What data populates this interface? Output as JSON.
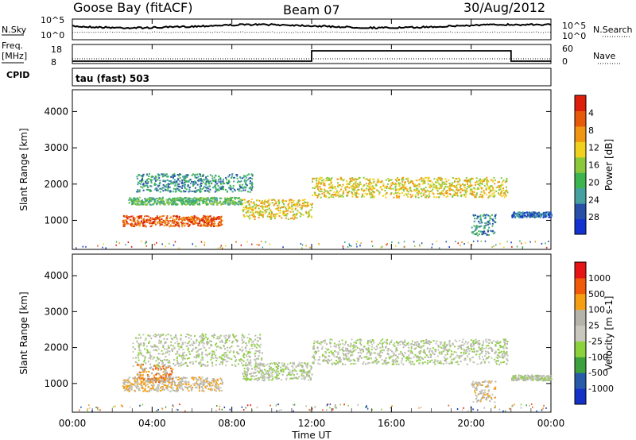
{
  "header": {
    "station": "Goose Bay (fitACF)",
    "beam": "Beam 07",
    "date": "30/Aug/2012"
  },
  "noise_panel": {
    "left_label": "N.Sky",
    "left_ticks": [
      "10^5",
      "10^0"
    ],
    "right_ticks": [
      "10^5",
      "10^0"
    ],
    "right_label": "N.Search"
  },
  "freq_panel": {
    "left_label_top": "Freq.",
    "left_label_unit": "[MHz]",
    "left_ticks": [
      "18",
      "8"
    ],
    "right_ticks": [
      "60",
      "0"
    ],
    "right_label": "Nave"
  },
  "cpid_panel": {
    "left_label": "CPID",
    "mode_text": "tau (fast) 503"
  },
  "time_axis": {
    "title": "Time UT",
    "ticks": [
      "00:00",
      "04:00",
      "08:00",
      "12:00",
      "16:00",
      "20:00",
      "00:00"
    ],
    "range_hours": [
      0,
      24
    ]
  },
  "colors": {
    "power": [
      "#1432d2",
      "#2850a8",
      "#46a0a0",
      "#3cb450",
      "#8cc83c",
      "#f0d21e",
      "#f09614",
      "#e65a0a",
      "#dc1e0a"
    ],
    "velocity": [
      "#e61414",
      "#f05a0a",
      "#f5a014",
      "#b4b4aa",
      "#c8c8be",
      "#8cd23c",
      "#3ca03c",
      "#285aaa",
      "#1432c8"
    ]
  },
  "chart_data": [
    {
      "type": "heatmap",
      "name": "power",
      "ylabel": "Slant Range [km]",
      "ylim": [
        200,
        4600
      ],
      "yticks": [
        "1000",
        "2000",
        "3000",
        "4000"
      ],
      "colorbar_label": "Power [dB]",
      "colorbar_ticks": [
        "4",
        "8",
        "12",
        "16",
        "20",
        "24",
        "28"
      ],
      "bands": [
        {
          "t0": 2.5,
          "t1": 7.5,
          "r0": 850,
          "r1": 1150,
          "level": 7
        },
        {
          "t0": 2.8,
          "t1": 8.5,
          "r0": 1450,
          "r1": 1650,
          "level": 3
        },
        {
          "t0": 3.2,
          "t1": 9.0,
          "r0": 1800,
          "r1": 2300,
          "level": 2
        },
        {
          "t0": 8.5,
          "t1": 12.0,
          "r0": 1050,
          "r1": 1600,
          "level": 5
        },
        {
          "t0": 12.0,
          "t1": 21.8,
          "r0": 1650,
          "r1": 2200,
          "level": 5
        },
        {
          "t0": 20.0,
          "t1": 21.2,
          "r0": 600,
          "r1": 1200,
          "level": 2
        },
        {
          "t0": 22.0,
          "t1": 24.0,
          "r0": 1100,
          "r1": 1250,
          "level": 1
        }
      ]
    },
    {
      "type": "heatmap",
      "name": "velocity",
      "ylabel": "Slant Range [km]",
      "ylim": [
        200,
        4600
      ],
      "yticks": [
        "1000",
        "2000",
        "3000",
        "4000"
      ],
      "colorbar_label": "Velocity [m s-1]",
      "colorbar_ticks": [
        "1000",
        "500",
        "100",
        "25",
        "-25",
        "-100",
        "-500",
        "-1000"
      ],
      "bands": [
        {
          "t0": 2.5,
          "t1": 7.5,
          "r0": 800,
          "r1": 1200,
          "level": 3
        },
        {
          "t0": 3.2,
          "t1": 5.0,
          "r0": 1050,
          "r1": 1550,
          "level": 2
        },
        {
          "t0": 3.0,
          "t1": 9.5,
          "r0": 1500,
          "r1": 2400,
          "level": 4
        },
        {
          "t0": 8.5,
          "t1": 12.0,
          "r0": 1100,
          "r1": 1600,
          "level": 4
        },
        {
          "t0": 12.0,
          "t1": 21.8,
          "r0": 1550,
          "r1": 2250,
          "level": 4
        },
        {
          "t0": 20.0,
          "t1": 21.2,
          "r0": 500,
          "r1": 1100,
          "level": 3
        },
        {
          "t0": 22.0,
          "t1": 24.0,
          "r0": 1100,
          "r1": 1250,
          "level": 4
        }
      ]
    }
  ]
}
